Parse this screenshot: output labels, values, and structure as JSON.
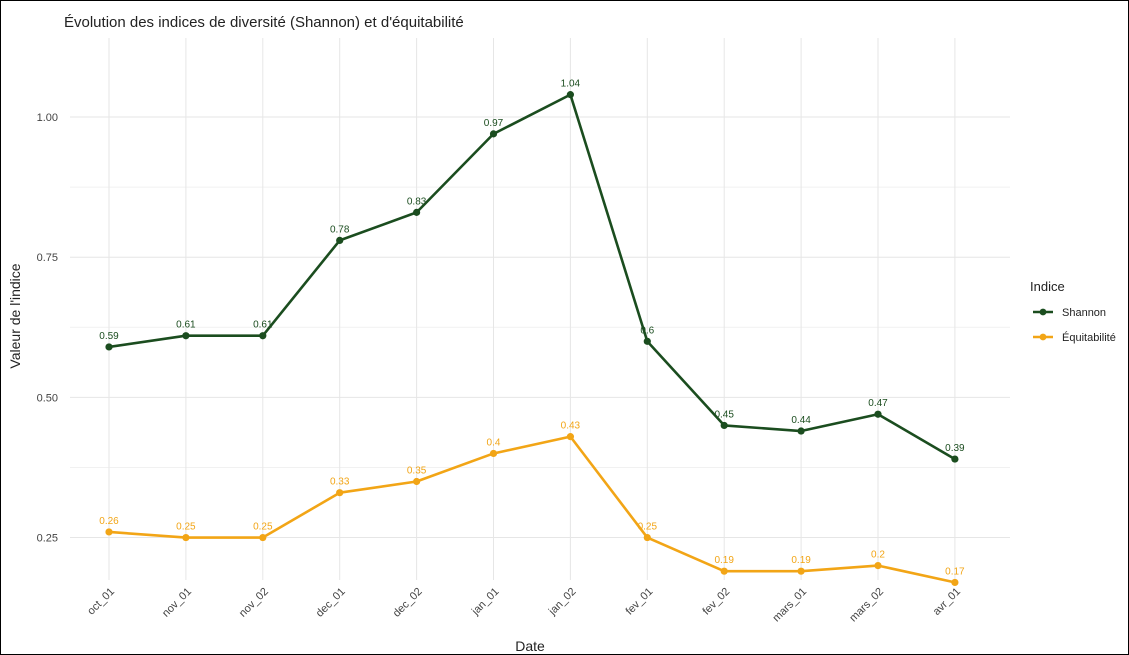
{
  "chart_data": {
    "type": "line",
    "title": "Évolution des indices de diversité (Shannon) et d'équitabilité",
    "xlabel": "Date",
    "ylabel": "Valeur de l'indice",
    "categories": [
      "oct_01",
      "nov_01",
      "nov_02",
      "dec_01",
      "dec_02",
      "jan_01",
      "jan_02",
      "fev_01",
      "fev_02",
      "mars_01",
      "mars_02",
      "avr_01"
    ],
    "ylim": [
      0.19,
      1.09
    ],
    "yticks": [
      0.25,
      0.5,
      0.75,
      1.0
    ],
    "ytick_labels": [
      "0.25",
      "0.50",
      "0.75",
      "1.00"
    ],
    "grid": true,
    "legend": {
      "title": "Indice",
      "position": "right"
    },
    "series": [
      {
        "name": "Shannon",
        "color": "#1b4d1f",
        "values": [
          0.59,
          0.61,
          0.61,
          0.78,
          0.83,
          0.97,
          1.04,
          0.6,
          0.45,
          0.44,
          0.47,
          0.39
        ],
        "labels": [
          "0.59",
          "0.61",
          "0.61",
          "0.78",
          "0.83",
          "0.97",
          "1.04",
          "0.6",
          "0.45",
          "0.44",
          "0.47",
          "0.39"
        ]
      },
      {
        "name": "Équitabilité",
        "color": "#f2a516",
        "values": [
          0.26,
          0.25,
          0.25,
          0.33,
          0.35,
          0.4,
          0.43,
          0.25,
          0.19,
          0.19,
          0.2,
          0.17
        ],
        "labels": [
          "0.26",
          "0.25",
          "0.25",
          "0.33",
          "0.35",
          "0.4",
          "0.43",
          "0.25",
          "0.19",
          "0.19",
          "0.2",
          "0.17"
        ]
      }
    ]
  }
}
